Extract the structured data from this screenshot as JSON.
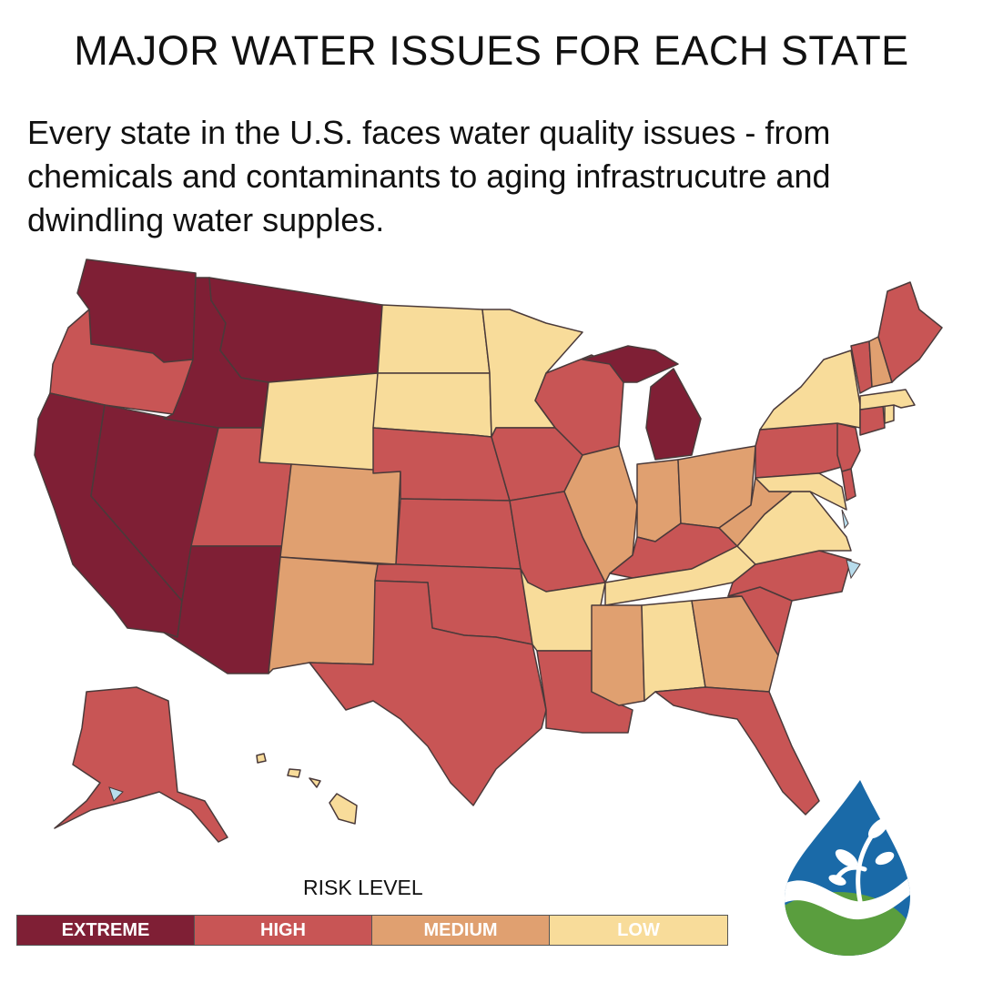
{
  "title": "MAJOR WATER ISSUES FOR EACH STATE",
  "subtitle": "Every state in the U.S. faces water quality issues - from chemicals and contaminants to aging infrastrucutre and dwindling water supples.",
  "legend": {
    "title": "RISK LEVEL",
    "levels": [
      {
        "label": "EXTREME",
        "color": "#7f1f35",
        "text_color": "#ffffff"
      },
      {
        "label": "HIGH",
        "color": "#c85555",
        "text_color": "#ffffff"
      },
      {
        "label": "MEDIUM",
        "color": "#e0a070",
        "text_color": "#ffffff"
      },
      {
        "label": "LOW",
        "color": "#f8dc9a",
        "text_color": "#ffffff"
      }
    ]
  },
  "states": {
    "WA": "extreme",
    "OR": "high",
    "CA": "extreme",
    "NV": "extreme",
    "ID": "extreme",
    "MT": "extreme",
    "WY": "low",
    "UT": "high",
    "AZ": "extreme",
    "CO": "medium",
    "NM": "medium",
    "ND": "low",
    "SD": "low",
    "NE": "high",
    "KS": "high",
    "OK": "high",
    "TX": "high",
    "MN": "low",
    "IA": "high",
    "MO": "high",
    "AR": "low",
    "LA": "high",
    "WI": "high",
    "IL": "medium",
    "MI": "extreme",
    "IN": "medium",
    "OH": "medium",
    "KY": "high",
    "TN": "low",
    "MS": "medium",
    "AL": "low",
    "GA": "medium",
    "FL": "high",
    "SC": "high",
    "NC": "high",
    "VA": "low",
    "WV": "medium",
    "MD": "low",
    "DE": "high",
    "PA": "high",
    "NJ": "high",
    "NY": "low",
    "CT": "high",
    "RI": "low",
    "MA": "low",
    "VT": "high",
    "NH": "medium",
    "ME": "high",
    "AK": "high",
    "HI": "low"
  },
  "colors": {
    "extreme": "#7f1f35",
    "high": "#c85555",
    "medium": "#e0a070",
    "low": "#f8dc9a",
    "border": "#4a3a3a",
    "water": "#b8dcec"
  },
  "logo": {
    "drop_color": "#1a6aa8",
    "earth_color": "#5a9e3e",
    "leaf_color": "#ffffff"
  }
}
